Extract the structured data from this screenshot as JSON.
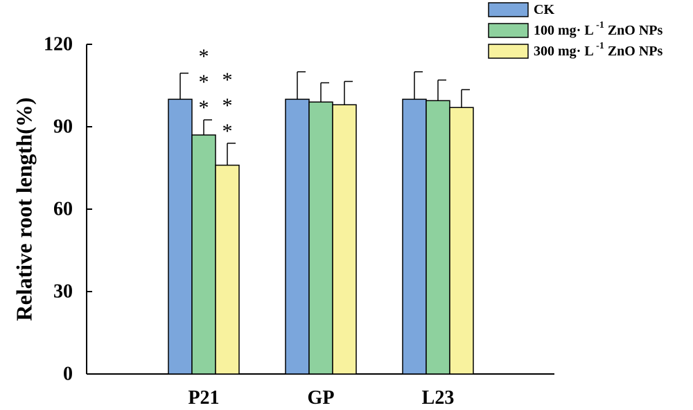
{
  "chart_data": {
    "type": "bar",
    "title": "",
    "xlabel": "",
    "ylabel": "Relative root length(%)",
    "ylim": [
      0,
      120
    ],
    "yticks": [
      0,
      30,
      60,
      90,
      120
    ],
    "categories": [
      "P21",
      "GP",
      "L23"
    ],
    "series": [
      {
        "name": "CK",
        "color": "#7ba6dc",
        "values": [
          100,
          100,
          100
        ],
        "errors": [
          9.5,
          10,
          10
        ]
      },
      {
        "name": "100 mg· L",
        "unit_superscript": "-1",
        "unit_suffix": " ZnO NPs",
        "color": "#8ed19e",
        "values": [
          87,
          99,
          99.5
        ],
        "errors": [
          5.5,
          7,
          7.5
        ]
      },
      {
        "name": "300 mg· L",
        "unit_superscript": "-1",
        "unit_suffix": " ZnO NPs",
        "color": "#f8f29e",
        "values": [
          76,
          98,
          97
        ],
        "errors": [
          8,
          8.5,
          6.5
        ]
      }
    ],
    "significance": [
      {
        "category": "P21",
        "series": "100 mg· L",
        "marks": [
          "*",
          "*",
          "*"
        ]
      },
      {
        "category": "P21",
        "series": "300 mg· L",
        "marks": [
          "*",
          "*",
          "*"
        ]
      }
    ],
    "legend_position": "top-right"
  }
}
